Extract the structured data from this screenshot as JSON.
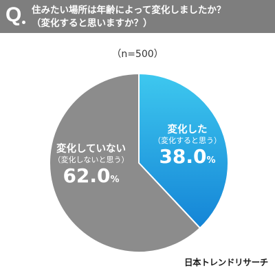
{
  "question": {
    "mark": "Q",
    "line1": "住みたい場所は年齢によって変化しましたか？",
    "line2": "（変化すると思いますか？）"
  },
  "sample": "（n=500）",
  "colors": {
    "header_bg": "#7e7e7e",
    "changed_top": "#3ec8ef",
    "changed_bottom": "#1484d6",
    "unchanged": "#8c8c8c"
  },
  "chart_data": {
    "type": "pie",
    "title": "住みたい場所は年齢によって変化しましたか？（変化すると思いますか？）",
    "sample_size": "n=500",
    "slices": [
      {
        "label": "変化した",
        "sublabel": "（変化すると思う）",
        "value": 38.0,
        "display": "38.0",
        "color": "#2aaee8"
      },
      {
        "label": "変化していない",
        "sublabel": "（変化しないと思う）",
        "value": 62.0,
        "display": "62.0",
        "color": "#8c8c8c"
      }
    ],
    "unit": "%"
  },
  "brand": "日本トレンドリサーチ"
}
